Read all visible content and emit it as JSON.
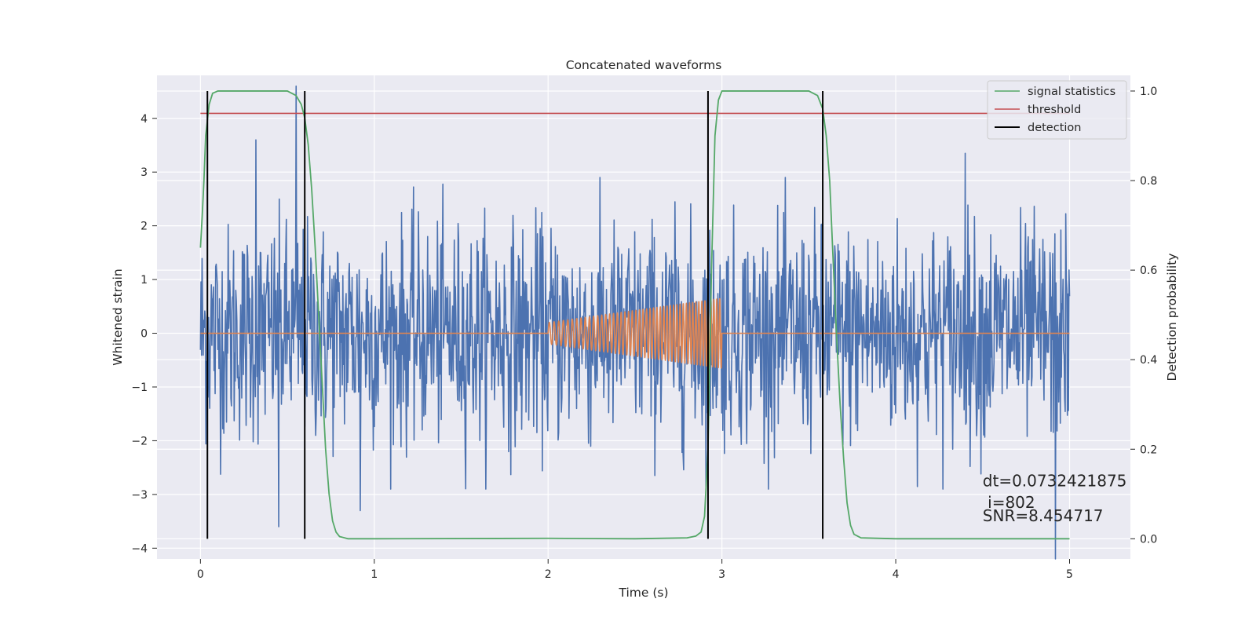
{
  "chart_data": {
    "type": "line",
    "title": "Concatenated waveforms",
    "xlabel": "Time (s)",
    "ylabel": "Whitened strain",
    "y2label": "Detection probability",
    "xlim": [
      -0.25,
      5.35
    ],
    "ylim": [
      -4.2,
      4.8
    ],
    "y2lim": [
      -0.045,
      1.035
    ],
    "x_ticks": [
      0,
      1,
      2,
      3,
      4,
      5
    ],
    "x_tick_labels": [
      "0",
      "1",
      "2",
      "3",
      "4",
      "5"
    ],
    "y_ticks": [
      -4,
      -3,
      -2,
      -1,
      0,
      1,
      2,
      3,
      4
    ],
    "y_tick_labels": [
      "−4",
      "−3",
      "−2",
      "−1",
      "0",
      "1",
      "2",
      "3",
      "4"
    ],
    "y2_ticks": [
      0.0,
      0.2,
      0.4,
      0.6,
      0.8,
      1.0
    ],
    "y2_tick_labels": [
      "0.0",
      "0.2",
      "0.4",
      "0.6",
      "0.8",
      "1.0"
    ],
    "grid": true,
    "legend_position": "top-right",
    "legend": [
      {
        "label": "signal statistics",
        "color": "#55a868"
      },
      {
        "label": "threshold",
        "color": "#c44e52"
      },
      {
        "label": "detection",
        "color": "#000000"
      }
    ],
    "series": [
      {
        "role": "noisy_strain",
        "color": "#4c72b0",
        "axis": "left",
        "x_range": [
          0,
          5
        ],
        "sample_count": 1600,
        "peak_points": [
          {
            "x": 0.32,
            "y": 3.6
          },
          {
            "x": 0.55,
            "y": 4.6
          },
          {
            "x": 4.4,
            "y": 3.35
          },
          {
            "x": 0.45,
            "y": -3.6
          },
          {
            "x": 0.92,
            "y": -3.3
          },
          {
            "x": 4.92,
            "y": -4.2
          }
        ],
        "typical_amplitude": 1.0
      },
      {
        "role": "injected_chirp",
        "color": "#dd8452",
        "axis": "left",
        "x_range": [
          0,
          5
        ],
        "chirp_start": 2.0,
        "chirp_end": 3.0,
        "amplitude_start": 0.2,
        "amplitude_end": 0.65,
        "cycles_first_half": 18,
        "cycles_second_half": 30
      },
      {
        "role": "signal_statistics",
        "color": "#55a868",
        "axis": "right",
        "x": [
          0,
          0.01,
          0.02,
          0.03,
          0.05,
          0.07,
          0.1,
          0.2,
          0.5,
          0.55,
          0.58,
          0.6,
          0.62,
          0.64,
          0.66,
          0.68,
          0.7,
          0.72,
          0.74,
          0.76,
          0.78,
          0.8,
          0.85,
          1.0,
          2.0,
          2.5,
          2.8,
          2.85,
          2.88,
          2.9,
          2.92,
          2.94,
          2.96,
          2.98,
          3.0,
          3.2,
          3.5,
          3.55,
          3.58,
          3.6,
          3.62,
          3.64,
          3.66,
          3.68,
          3.7,
          3.72,
          3.74,
          3.76,
          3.8,
          4.0,
          5.0
        ],
        "y": [
          0.65,
          0.72,
          0.8,
          0.9,
          0.97,
          0.995,
          1.0,
          1.0,
          1.0,
          0.99,
          0.97,
          0.94,
          0.88,
          0.78,
          0.65,
          0.5,
          0.35,
          0.2,
          0.1,
          0.04,
          0.015,
          0.005,
          0.0,
          0.0,
          0.001,
          0.0,
          0.002,
          0.006,
          0.015,
          0.05,
          0.2,
          0.6,
          0.9,
          0.98,
          1.0,
          1.0,
          1.0,
          0.99,
          0.96,
          0.9,
          0.8,
          0.62,
          0.45,
          0.3,
          0.18,
          0.08,
          0.03,
          0.01,
          0.002,
          0.0,
          0.0
        ]
      },
      {
        "role": "threshold",
        "color": "#c44e52",
        "axis": "right",
        "x": [
          0,
          5
        ],
        "y": [
          0.95,
          0.95
        ]
      }
    ],
    "detections": {
      "color": "#000000",
      "x": [
        0.04,
        0.6,
        2.92,
        3.58
      ],
      "y2_range": [
        0.0,
        1.0
      ]
    },
    "annotations": [
      {
        "text": "dt=0.0732421875",
        "x": 4.5,
        "y": -2.85
      },
      {
        "text": " i=802",
        "x": 4.5,
        "y": -3.25
      },
      {
        "text": "SNR=8.454717",
        "x": 4.5,
        "y": -3.5
      }
    ]
  }
}
